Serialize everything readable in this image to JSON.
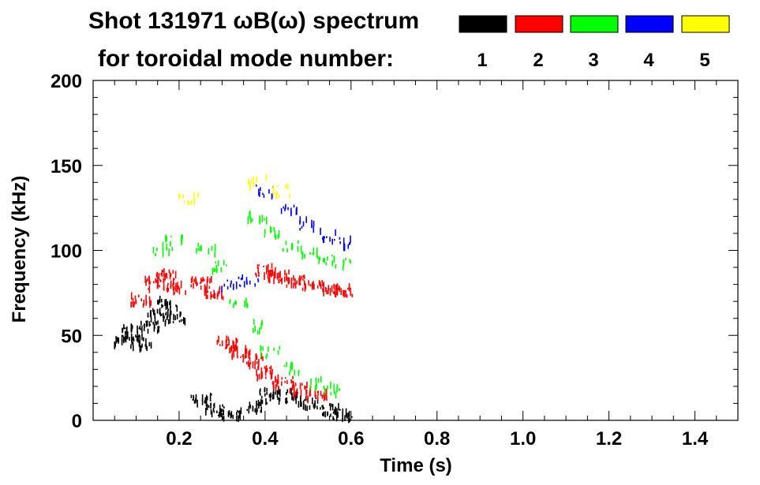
{
  "chart_data": {
    "type": "heatmap",
    "title_line1": "Shot 131971 ωB(ω) spectrum",
    "title_line2": "for toroidal mode number:",
    "xlabel": "Time (s)",
    "ylabel": "Frequency (kHz)",
    "xlim": [
      0.0,
      1.5
    ],
    "ylim": [
      0,
      200
    ],
    "x_ticks": [
      0.2,
      0.4,
      0.6,
      0.8,
      1.0,
      1.2,
      1.4
    ],
    "x_tick_labels": [
      "0.2",
      "0.4",
      "0.6",
      "0.8",
      "1.0",
      "1.2",
      "1.4"
    ],
    "y_ticks": [
      0,
      50,
      100,
      150,
      200
    ],
    "y_tick_labels": [
      "0",
      "50",
      "100",
      "150",
      "200"
    ],
    "legend": [
      {
        "name": "1",
        "color": "#000000"
      },
      {
        "name": "2",
        "color": "#ff0000"
      },
      {
        "name": "3",
        "color": "#00ff00"
      },
      {
        "name": "4",
        "color": "#0000ff"
      },
      {
        "name": "5",
        "color": "#ffff00"
      }
    ],
    "legend_placement": "top-right",
    "series": [
      {
        "mode": "1",
        "points": [
          [
            0.07,
            47
          ],
          [
            0.09,
            52
          ],
          [
            0.11,
            45
          ],
          [
            0.13,
            55
          ],
          [
            0.15,
            62
          ],
          [
            0.17,
            68
          ],
          [
            0.19,
            60
          ],
          [
            0.25,
            12
          ],
          [
            0.28,
            6
          ],
          [
            0.32,
            3
          ],
          [
            0.38,
            8
          ],
          [
            0.41,
            16
          ],
          [
            0.45,
            14
          ],
          [
            0.5,
            10
          ],
          [
            0.55,
            6
          ],
          [
            0.58,
            3
          ]
        ]
      },
      {
        "mode": "2",
        "points": [
          [
            0.11,
            70
          ],
          [
            0.14,
            80
          ],
          [
            0.17,
            85
          ],
          [
            0.19,
            78
          ],
          [
            0.25,
            80
          ],
          [
            0.28,
            75
          ],
          [
            0.31,
            45
          ],
          [
            0.34,
            40
          ],
          [
            0.37,
            35
          ],
          [
            0.4,
            28
          ],
          [
            0.44,
            22
          ],
          [
            0.48,
            18
          ],
          [
            0.52,
            15
          ],
          [
            0.4,
            88
          ],
          [
            0.43,
            85
          ],
          [
            0.47,
            82
          ],
          [
            0.51,
            80
          ],
          [
            0.55,
            78
          ],
          [
            0.58,
            76
          ]
        ]
      },
      {
        "mode": "3",
        "points": [
          [
            0.16,
            100
          ],
          [
            0.19,
            106
          ],
          [
            0.26,
            100
          ],
          [
            0.3,
            90
          ],
          [
            0.34,
            70
          ],
          [
            0.38,
            55
          ],
          [
            0.41,
            40
          ],
          [
            0.46,
            30
          ],
          [
            0.52,
            22
          ],
          [
            0.56,
            18
          ],
          [
            0.38,
            120
          ],
          [
            0.42,
            110
          ],
          [
            0.46,
            102
          ],
          [
            0.5,
            98
          ],
          [
            0.54,
            94
          ],
          [
            0.58,
            92
          ]
        ]
      },
      {
        "mode": "4",
        "points": [
          [
            0.32,
            80
          ],
          [
            0.36,
            82
          ],
          [
            0.4,
            135
          ],
          [
            0.45,
            125
          ],
          [
            0.5,
            115
          ],
          [
            0.55,
            108
          ],
          [
            0.58,
            104
          ]
        ]
      },
      {
        "mode": "5",
        "points": [
          [
            0.22,
            130
          ],
          [
            0.38,
            140
          ],
          [
            0.44,
            135
          ]
        ]
      }
    ]
  }
}
